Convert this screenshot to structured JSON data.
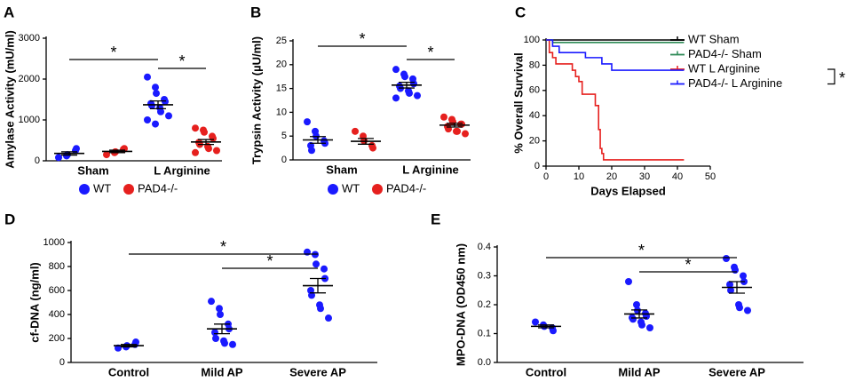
{
  "chart_data": [
    {
      "type": "dot",
      "panel": "A",
      "ylabel": "Amylase Activity (mU/ml)",
      "ylim": [
        0,
        3000
      ],
      "yticks": [
        0,
        1000,
        2000,
        3000
      ],
      "categories": [
        "Sham",
        "L Arginine"
      ],
      "series": [
        {
          "name": "WT",
          "color": "#1a1aff",
          "values": [
            [
              80,
              120,
              150,
              250,
              300
            ],
            [
              2050,
              1800,
              1650,
              1500,
              1450,
              1400,
              1350,
              1300,
              1200,
              1100,
              1000,
              900
            ]
          ],
          "means": [
            180,
            1370
          ],
          "errors": [
            40,
            95
          ]
        },
        {
          "name": "PAD4-/-",
          "color": "#e6201e",
          "values": [
            [
              150,
              200,
              220,
              280,
              300
            ],
            [
              800,
              750,
              700,
              600,
              550,
              450,
              400,
              350,
              300,
              250,
              200
            ]
          ],
          "means": [
            230,
            460
          ],
          "errors": [
            30,
            60
          ]
        }
      ],
      "significance": [
        "*",
        "*"
      ]
    },
    {
      "type": "dot",
      "panel": "B",
      "ylabel": "Trypsin Activity (µU/ml)",
      "ylim": [
        0,
        25
      ],
      "yticks": [
        0,
        5,
        10,
        15,
        20,
        25
      ],
      "categories": [
        "Sham",
        "L Arginine"
      ],
      "series": [
        {
          "name": "WT",
          "color": "#1a1aff",
          "values": [
            [
              8,
              6,
              5,
              4,
              3.5,
              3,
              2
            ],
            [
              19,
              18,
              17.5,
              17,
              16,
              15.5,
              15,
              14.5,
              14,
              13.5,
              13
            ]
          ],
          "means": [
            4.2,
            15.7
          ],
          "errors": [
            0.7,
            0.6
          ]
        },
        {
          "name": "PAD4-/-",
          "color": "#e6201e",
          "values": [
            [
              6,
              5,
              4,
              3,
              2.5
            ],
            [
              9,
              8.5,
              8,
              7.5,
              7.5,
              7,
              6.5,
              6,
              6,
              5.5
            ]
          ],
          "means": [
            3.9,
            7.3
          ],
          "errors": [
            0.6,
            0.4
          ]
        }
      ],
      "significance": [
        "*",
        "*"
      ]
    },
    {
      "type": "survival",
      "panel": "C",
      "ylabel": "% Overall Survival",
      "xlabel": "Days Elapsed",
      "xlim": [
        0,
        50
      ],
      "xticks": [
        0,
        10,
        20,
        30,
        40,
        50
      ],
      "ylim": [
        0,
        100
      ],
      "yticks": [
        0,
        20,
        40,
        60,
        80,
        100
      ],
      "legend": "right",
      "series": [
        {
          "name": "WT Sham",
          "color": "#000000",
          "x": [
            0,
            42
          ],
          "values": [
            100,
            100
          ]
        },
        {
          "name": "PAD4-/- Sham",
          "color": "#2e8b57",
          "x": [
            0,
            2,
            42
          ],
          "values": [
            100,
            98,
            98
          ]
        },
        {
          "name": "WT L Arginine",
          "color": "#e6201e",
          "x": [
            0,
            1,
            2,
            3,
            8,
            9,
            10,
            11,
            15,
            16,
            16.5,
            17,
            17.5,
            42
          ],
          "values": [
            100,
            90,
            86,
            81,
            76,
            71,
            67,
            57,
            48,
            29,
            14,
            10,
            5,
            5
          ]
        },
        {
          "name": "PAD4-/- L Arginine",
          "color": "#1a1aff",
          "x": [
            0,
            2,
            4,
            12,
            17,
            20,
            42
          ],
          "values": [
            100,
            95,
            90,
            86,
            81,
            76,
            76
          ]
        }
      ],
      "significance": [
        "*"
      ]
    },
    {
      "type": "dot",
      "panel": "D",
      "ylabel": "cf-DNA (ng/ml)",
      "ylim": [
        0,
        1000
      ],
      "yticks": [
        0,
        200,
        400,
        600,
        800,
        1000
      ],
      "categories": [
        "Control",
        "Mild AP",
        "Severe AP"
      ],
      "series": [
        {
          "color": "#1a1aff",
          "values": [
            [
              120,
              130,
              140,
              150,
              170
            ],
            [
              510,
              450,
              400,
              320,
              280,
              250,
              200,
              180,
              160,
              150
            ],
            [
              920,
              900,
              820,
              780,
              700,
              600,
              560,
              480,
              450,
              370
            ]
          ],
          "means": [
            140,
            280,
            640
          ],
          "errors": [
            10,
            40,
            60
          ]
        }
      ],
      "significance": [
        "*",
        "*"
      ]
    },
    {
      "type": "dot",
      "panel": "E",
      "ylabel": "MPO-DNA (OD450 nm)",
      "ylim": [
        0,
        0.4
      ],
      "yticks": [
        {
          "value": 0,
          "label": "0.0"
        },
        0.1,
        0.2,
        0.3,
        0.4
      ],
      "categories": [
        "Control",
        "Mild AP",
        "Severe AP"
      ],
      "series": [
        {
          "color": "#1a1aff",
          "values": [
            [
              0.14,
              0.13,
              0.125,
              0.12,
              0.11
            ],
            [
              0.28,
              0.2,
              0.18,
              0.17,
              0.16,
              0.155,
              0.15,
              0.14,
              0.13,
              0.12
            ],
            [
              0.36,
              0.33,
              0.32,
              0.3,
              0.28,
              0.27,
              0.25,
              0.2,
              0.19,
              0.18
            ]
          ],
          "means": [
            0.125,
            0.168,
            0.26
          ],
          "errors": [
            0.005,
            0.014,
            0.02
          ]
        }
      ],
      "significance": [
        "*",
        "*"
      ]
    }
  ]
}
